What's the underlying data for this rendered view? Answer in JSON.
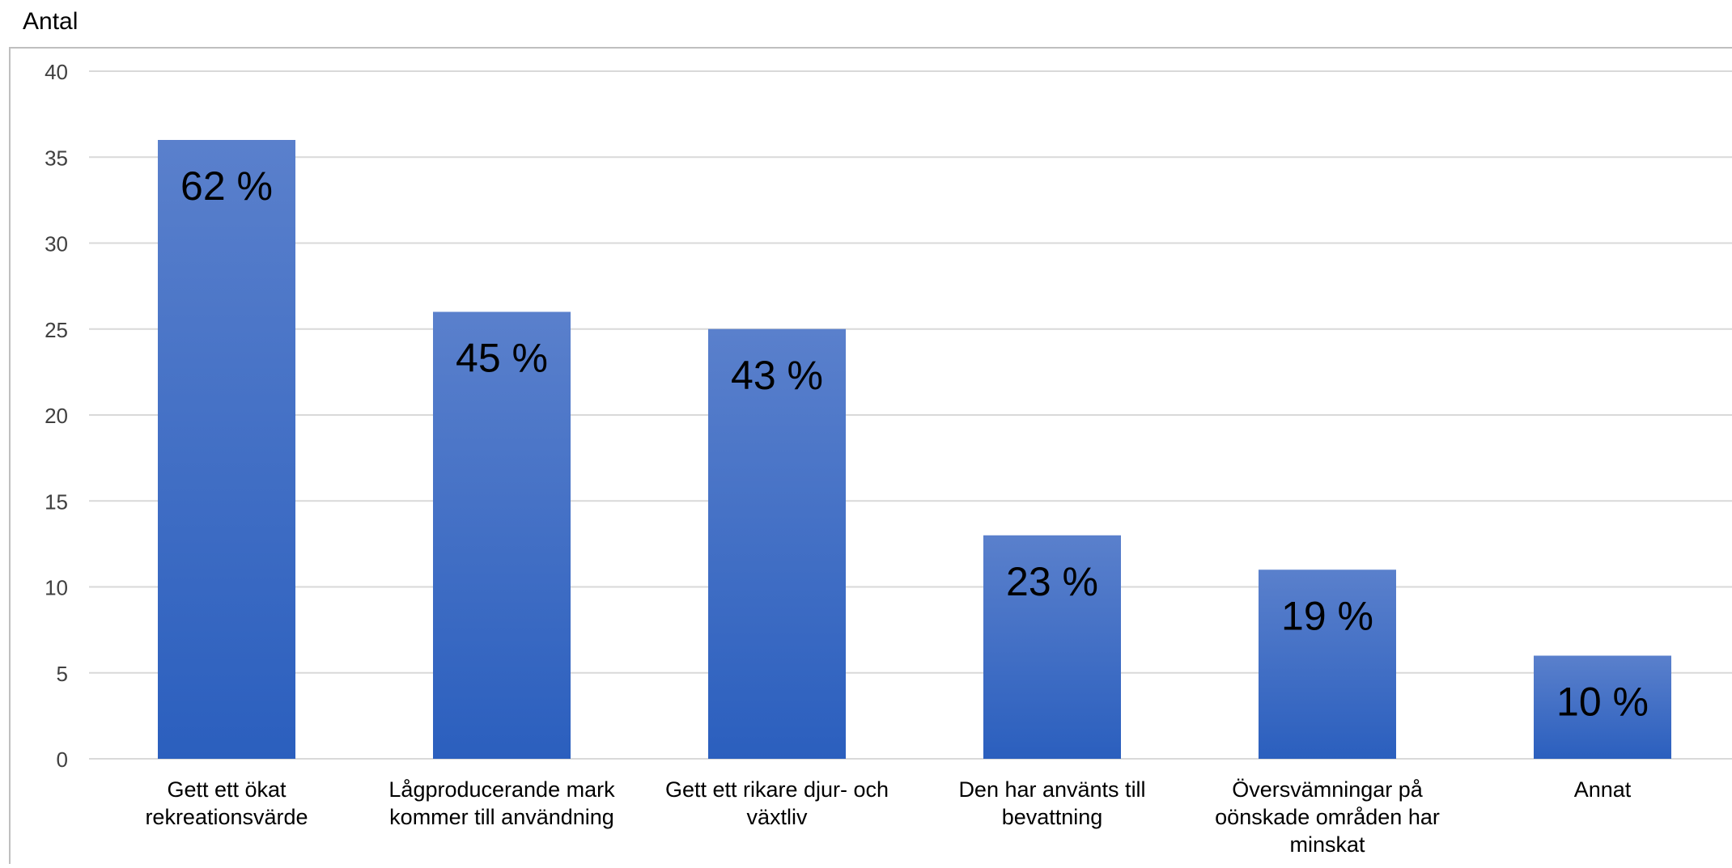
{
  "chart_data": {
    "type": "bar",
    "ylabel": "Antal",
    "ylim": [
      0,
      40
    ],
    "yticks": [
      0,
      5,
      10,
      15,
      20,
      25,
      30,
      35,
      40
    ],
    "grid": true,
    "legend": "none",
    "categories": [
      [
        "Gett ett ökat",
        "rekreationsvärde"
      ],
      [
        "Lågproducerande mark",
        "kommer till användning"
      ],
      [
        "Gett ett rikare djur- och",
        "växtliv"
      ],
      [
        "Den har använts till",
        "bevattning"
      ],
      [
        "Översvämningar på",
        "oönskade områden har",
        "minskat"
      ],
      [
        "Annat"
      ]
    ],
    "values": [
      36,
      26,
      25,
      13,
      11,
      6
    ],
    "data_labels": [
      "62 %",
      "45 %",
      "43 %",
      "23 %",
      "19 %",
      "10 %"
    ],
    "colors": {
      "bar_top": "#5a80cc",
      "bar_bottom": "#2b5fbe",
      "grid": "#d9d9d9",
      "frame": "#bfbfbf",
      "text": "#000000",
      "tick_text": "#404040"
    }
  }
}
